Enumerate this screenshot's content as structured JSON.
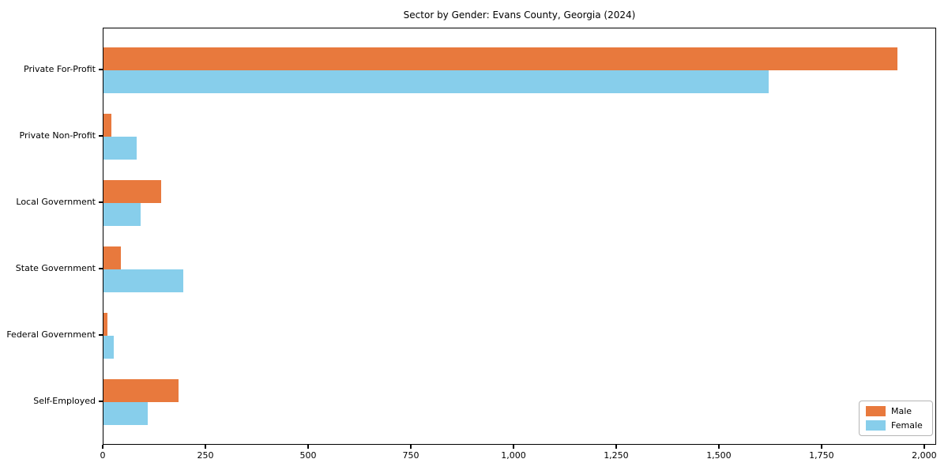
{
  "title": "Sector by Gender: Evans County, Georgia (2024)",
  "colors": {
    "male": "#e8793d",
    "female": "#87ceeb",
    "axis": "#000000",
    "legend_border": "#b5b5b5",
    "background": "#ffffff"
  },
  "chart_data": {
    "type": "bar",
    "orientation": "horizontal",
    "title": "Sector by Gender: Evans County, Georgia (2024)",
    "categories": [
      "Private For-Profit",
      "Private Non-Profit",
      "Local Government",
      "State Government",
      "Federal Government",
      "Self-Employed"
    ],
    "series": [
      {
        "name": "Male",
        "color": "#e8793d",
        "values": [
          1933,
          20,
          140,
          43,
          9,
          183
        ]
      },
      {
        "name": "Female",
        "color": "#87ceeb",
        "values": [
          1620,
          80,
          90,
          195,
          25,
          108
        ]
      }
    ],
    "xlabel": "",
    "ylabel": "",
    "xlim": [
      0,
      2029
    ],
    "x_ticks": [
      0,
      250,
      500,
      750,
      1000,
      1250,
      1500,
      1750,
      2000
    ],
    "x_tick_labels": [
      "0",
      "250",
      "500",
      "750",
      "1,000",
      "1,250",
      "1,500",
      "1,750",
      "2,000"
    ],
    "grid": false,
    "legend_position": "lower right"
  }
}
